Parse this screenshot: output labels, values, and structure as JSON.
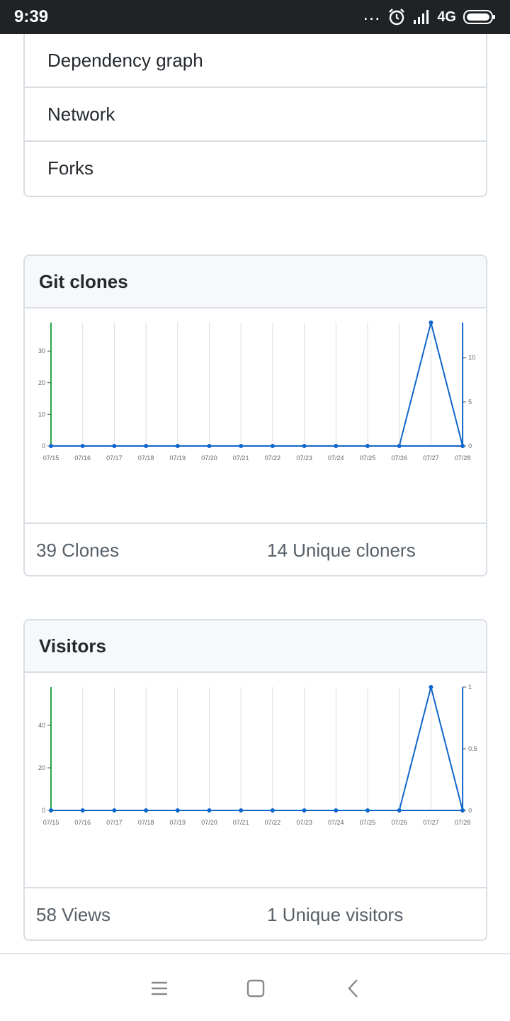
{
  "status_bar": {
    "time": "9:39",
    "dots": "...",
    "network": "4G",
    "icons": [
      "alarm-icon",
      "signal-icon",
      "battery-icon"
    ]
  },
  "menu": {
    "items": [
      {
        "label": "Dependency graph"
      },
      {
        "label": "Network"
      },
      {
        "label": "Forks"
      }
    ]
  },
  "clones": {
    "title": "Git clones",
    "count_label": "39 Clones",
    "unique_label": "14 Unique cloners"
  },
  "visitors": {
    "title": "Visitors",
    "count_label": "58 Views",
    "unique_label": "1 Unique visitors"
  },
  "colors": {
    "total_axis": "#28a745",
    "unique_series": "#1166cc",
    "grid": "#dddddd",
    "border": "#d8dee4"
  },
  "chart_data": [
    {
      "type": "line",
      "title": "Git clones",
      "x": [
        "07/15",
        "07/16",
        "07/17",
        "07/18",
        "07/19",
        "07/20",
        "07/21",
        "07/22",
        "07/23",
        "07/24",
        "07/25",
        "07/26",
        "07/27",
        "07/28"
      ],
      "y_left_ticks": [
        0,
        10,
        20,
        30
      ],
      "y_left_lim": [
        0,
        39
      ],
      "y_right_ticks": [
        0,
        5,
        10
      ],
      "y_right_lim": [
        0,
        14
      ],
      "series": [
        {
          "axis": "right",
          "values": [
            0,
            0,
            0,
            0,
            0,
            0,
            0,
            0,
            0,
            0,
            0,
            0,
            14,
            0
          ]
        }
      ],
      "grid": true
    },
    {
      "type": "line",
      "title": "Visitors",
      "x": [
        "07/15",
        "07/16",
        "07/17",
        "07/18",
        "07/19",
        "07/20",
        "07/21",
        "07/22",
        "07/23",
        "07/24",
        "07/25",
        "07/26",
        "07/27",
        "07/28"
      ],
      "y_left_ticks": [
        0,
        20,
        40
      ],
      "y_left_lim": [
        0,
        58
      ],
      "y_right_ticks": [
        0,
        0.5,
        1
      ],
      "y_right_lim": [
        0,
        1
      ],
      "series": [
        {
          "axis": "right",
          "values": [
            0,
            0,
            0,
            0,
            0,
            0,
            0,
            0,
            0,
            0,
            0,
            0,
            1,
            0
          ]
        }
      ],
      "grid": true
    }
  ]
}
